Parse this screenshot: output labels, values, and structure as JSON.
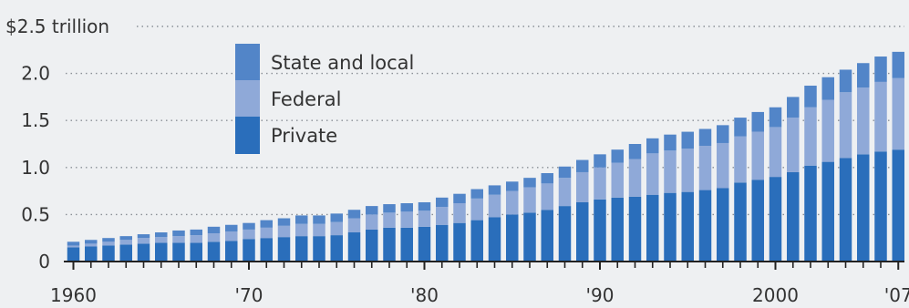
{
  "chart_data": {
    "type": "bar",
    "stacked": true,
    "x": [
      1960,
      1961,
      1962,
      1963,
      1964,
      1965,
      1966,
      1967,
      1968,
      1969,
      1970,
      1971,
      1972,
      1973,
      1974,
      1975,
      1976,
      1977,
      1978,
      1979,
      1980,
      1981,
      1982,
      1983,
      1984,
      1985,
      1986,
      1987,
      1988,
      1989,
      1990,
      1991,
      1992,
      1993,
      1994,
      1995,
      1996,
      1997,
      1998,
      1999,
      2000,
      2001,
      2002,
      2003,
      2004,
      2005,
      2006,
      2007
    ],
    "series": [
      {
        "name": "Private",
        "color": "#2a6ebb",
        "values": [
          0.15,
          0.16,
          0.17,
          0.18,
          0.19,
          0.2,
          0.2,
          0.2,
          0.21,
          0.22,
          0.24,
          0.25,
          0.26,
          0.27,
          0.27,
          0.28,
          0.31,
          0.34,
          0.36,
          0.36,
          0.37,
          0.39,
          0.41,
          0.44,
          0.47,
          0.5,
          0.52,
          0.55,
          0.59,
          0.63,
          0.66,
          0.68,
          0.69,
          0.71,
          0.73,
          0.74,
          0.76,
          0.78,
          0.84,
          0.87,
          0.9,
          0.95,
          1.02,
          1.06,
          1.1,
          1.14,
          1.17,
          1.19
        ]
      },
      {
        "name": "Federal",
        "color": "#8fa9d8",
        "values": [
          0.02,
          0.03,
          0.04,
          0.05,
          0.06,
          0.06,
          0.07,
          0.08,
          0.09,
          0.1,
          0.1,
          0.11,
          0.12,
          0.13,
          0.13,
          0.14,
          0.15,
          0.16,
          0.16,
          0.17,
          0.17,
          0.19,
          0.21,
          0.23,
          0.24,
          0.25,
          0.27,
          0.28,
          0.3,
          0.32,
          0.34,
          0.37,
          0.4,
          0.44,
          0.45,
          0.46,
          0.47,
          0.48,
          0.49,
          0.51,
          0.53,
          0.58,
          0.62,
          0.66,
          0.7,
          0.71,
          0.74,
          0.76
        ]
      },
      {
        "name": "State and local",
        "color": "#5285c8",
        "values": [
          0.04,
          0.04,
          0.04,
          0.04,
          0.04,
          0.05,
          0.06,
          0.06,
          0.07,
          0.07,
          0.07,
          0.08,
          0.08,
          0.09,
          0.09,
          0.09,
          0.09,
          0.09,
          0.09,
          0.09,
          0.09,
          0.1,
          0.1,
          0.1,
          0.1,
          0.1,
          0.1,
          0.11,
          0.12,
          0.13,
          0.14,
          0.14,
          0.16,
          0.16,
          0.17,
          0.18,
          0.18,
          0.19,
          0.2,
          0.21,
          0.21,
          0.22,
          0.23,
          0.24,
          0.24,
          0.26,
          0.27,
          0.28
        ]
      }
    ],
    "legend_order": [
      "State and local",
      "Federal",
      "Private"
    ],
    "ylim": [
      0,
      2.5
    ],
    "y_ticks": [
      {
        "value": 0,
        "label": "0"
      },
      {
        "value": 0.5,
        "label": "0.5"
      },
      {
        "value": 1.0,
        "label": "1.0"
      },
      {
        "value": 1.5,
        "label": "1.5"
      },
      {
        "value": 2.0,
        "label": "2.0"
      },
      {
        "value": 2.5,
        "label": "$2.5 trillion"
      }
    ],
    "x_tick_labels": [
      {
        "year": 1960,
        "label": "1960"
      },
      {
        "year": 1970,
        "label": "'70"
      },
      {
        "year": 1980,
        "label": "'80"
      },
      {
        "year": 1990,
        "label": "'90"
      },
      {
        "year": 2000,
        "label": "2000"
      },
      {
        "year": 2007,
        "label": "'07"
      }
    ],
    "grid": "dotted horizontal",
    "legend_position": "upper-left"
  }
}
